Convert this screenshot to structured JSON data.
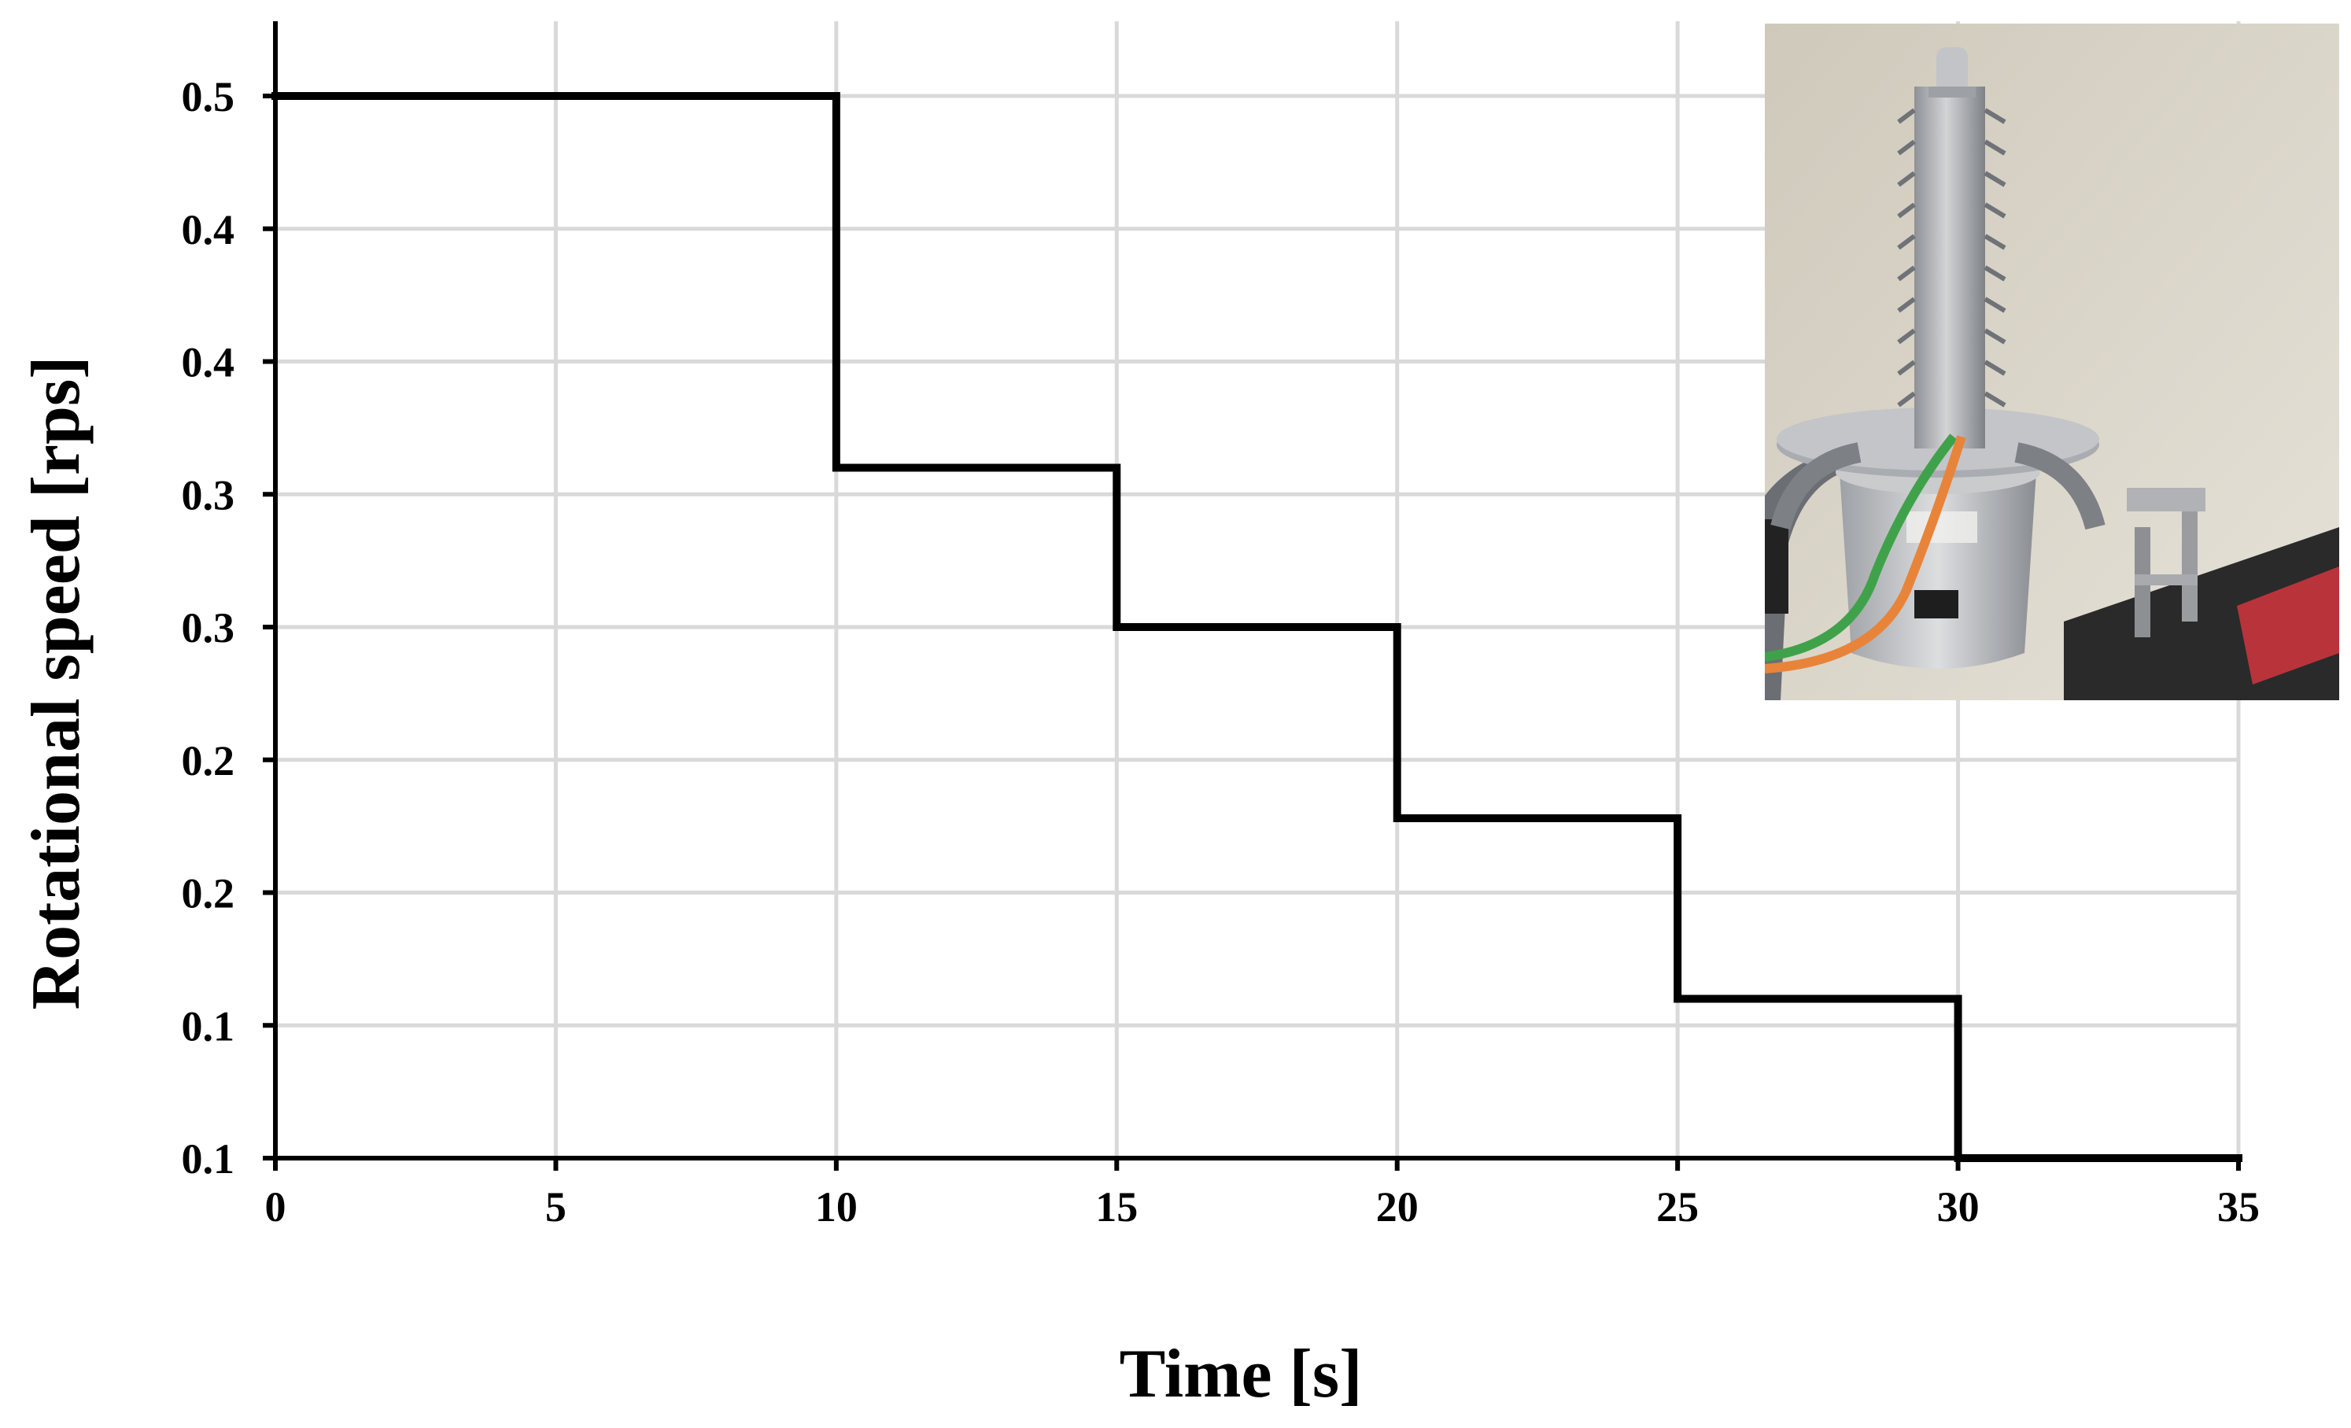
{
  "chart_data": {
    "type": "line",
    "step": true,
    "title": "",
    "xlabel": "Time [s]",
    "ylabel": "Rotational speed [rps]",
    "xlim": [
      0,
      35
    ],
    "ylim": [
      0.05,
      0.45
    ],
    "x_ticks": [
      0,
      5,
      10,
      15,
      20,
      25,
      30,
      35
    ],
    "x_tick_labels": [
      "0",
      "5",
      "10",
      "15",
      "20",
      "25",
      "30",
      "35"
    ],
    "y_ticks": [
      0.05,
      0.1,
      0.15,
      0.2,
      0.25,
      0.3,
      0.35,
      0.4,
      0.45
    ],
    "y_tick_labels": [
      "0.1",
      "0.1",
      "0.2",
      "0.2",
      "0.3",
      "0.3",
      "0.4",
      "0.4",
      "0.5"
    ],
    "grid": true,
    "legend": "none",
    "series": [
      {
        "x": [
          0,
          10,
          10,
          15,
          15,
          20,
          20,
          25,
          25,
          30,
          30,
          35
        ],
        "y": [
          0.45,
          0.45,
          0.31,
          0.31,
          0.25,
          0.25,
          0.178,
          0.178,
          0.11,
          0.11,
          0.05,
          0.05
        ]
      }
    ]
  },
  "inset_photo": {
    "icon": "rotating-finned-rod-apparatus-photo",
    "colors": {
      "wall": "#d8d3c6",
      "metal": "#b7b9bb",
      "green_wire": "#3fa24a",
      "orange_wire": "#e8843a",
      "base_red": "#b8343a"
    }
  }
}
